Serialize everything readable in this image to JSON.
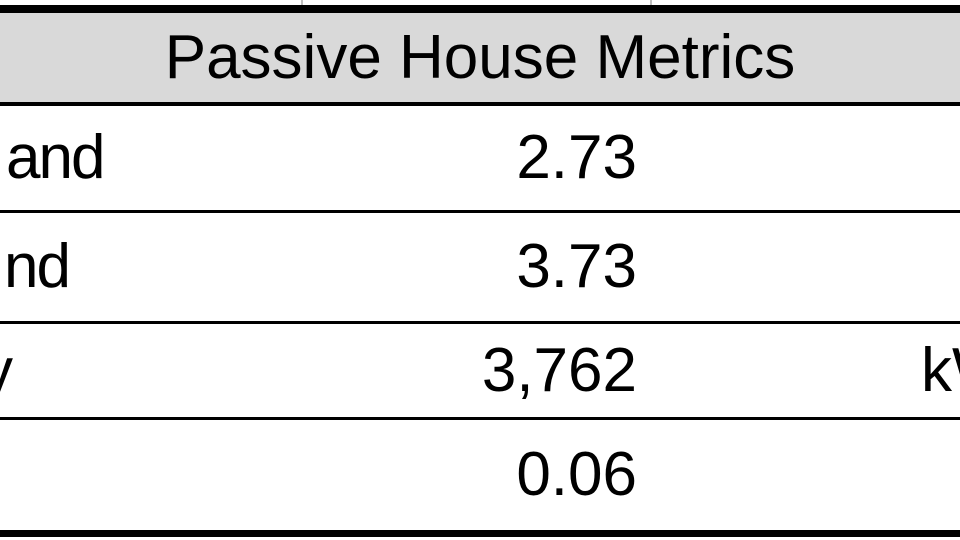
{
  "table": {
    "title": "Passive House Metrics",
    "rows": [
      {
        "label_fragment": "and",
        "value": "2.73",
        "unit_fragment": ""
      },
      {
        "label_fragment": "nd",
        "value": "3.73",
        "unit_fragment": ""
      },
      {
        "label_fragment": "y",
        "value": "3,762",
        "unit_fragment": "kW"
      },
      {
        "label_fragment": "",
        "value": "0.06",
        "unit_fragment": ""
      }
    ]
  },
  "colors": {
    "header_bg": "#d9d9d9",
    "border": "#000000",
    "text": "#000000",
    "gridline": "#bfbfbf",
    "background": "#ffffff"
  }
}
